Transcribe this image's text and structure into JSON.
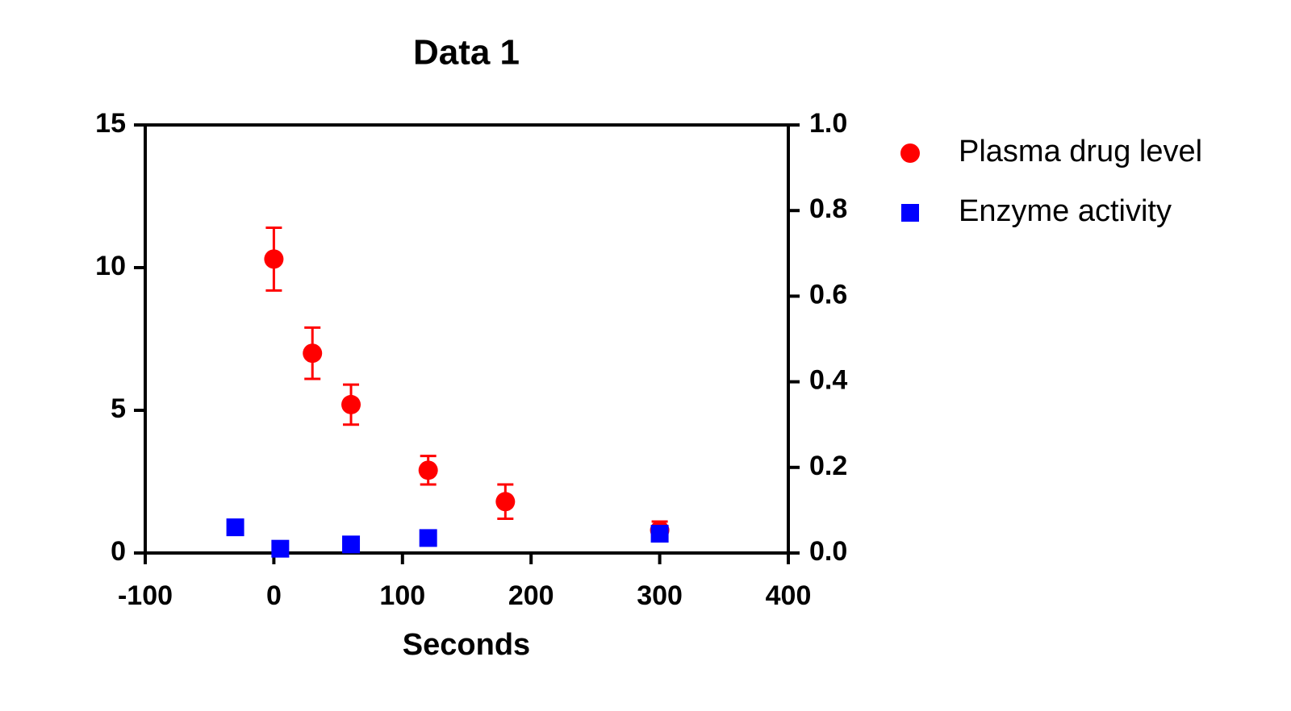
{
  "chart_data": {
    "type": "scatter",
    "title": "Data 1",
    "xlabel": "Seconds",
    "xlim": [
      -100,
      400
    ],
    "xticks": [
      -100,
      0,
      100,
      200,
      300,
      400
    ],
    "ylim": [
      0,
      15
    ],
    "yticks": [
      0,
      5,
      10,
      15
    ],
    "y2lim": [
      0,
      1
    ],
    "y2ticks": [
      {
        "value": 0,
        "label": "0.0"
      },
      0.2,
      0.4,
      0.6,
      0.8,
      {
        "value": 1,
        "label": "1.0"
      }
    ],
    "series": [
      {
        "name": "Plasma drug level",
        "color": "#ff0000",
        "marker": "circle",
        "x": [
          0,
          30,
          60,
          120,
          180,
          300
        ],
        "values": [
          10.3,
          7.0,
          5.2,
          2.9,
          1.8,
          0.8
        ],
        "errors": [
          1.1,
          0.9,
          0.7,
          0.5,
          0.6,
          0.3
        ]
      },
      {
        "name": "Enzyme activity",
        "color": "#0000ff",
        "marker": "square",
        "axis": "y2",
        "x": [
          -30,
          5,
          60,
          120,
          300
        ],
        "values": [
          0.06,
          0.01,
          0.02,
          0.035,
          0.045
        ]
      }
    ]
  }
}
